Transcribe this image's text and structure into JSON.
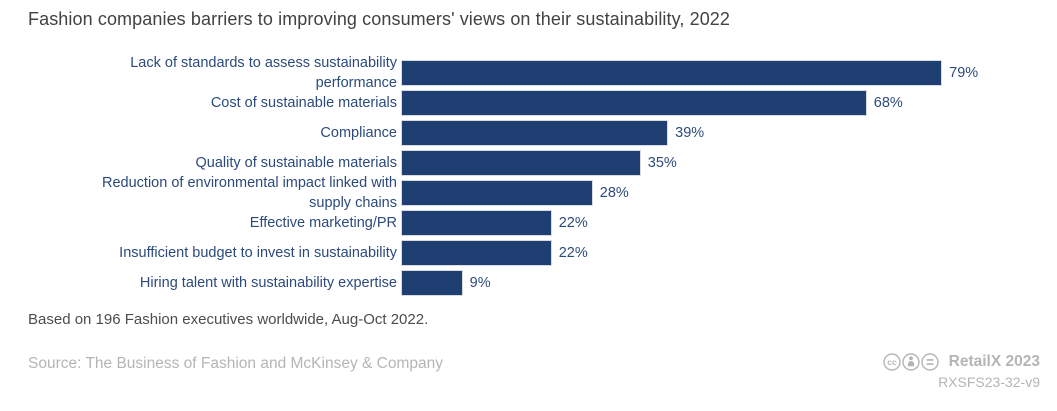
{
  "title": "Fashion companies barriers to improving consumers' views on their sustainability, 2022",
  "chart_data": {
    "type": "bar",
    "orientation": "horizontal",
    "title": "Fashion companies barriers to improving consumers' views on their sustainability, 2022",
    "categories": [
      "Lack of standards to assess sustainability performance",
      "Cost of sustainable materials",
      "Compliance",
      "Quality of sustainable materials",
      "Reduction of environmental impact linked with supply chains",
      "Effective marketing/PR",
      "Insufficient budget to invest in sustainability",
      "Hiring talent with sustainability expertise"
    ],
    "label_lines": [
      [
        "Lack of standards to assess sustainability",
        "performance"
      ],
      [
        "Cost of sustainable materials"
      ],
      [
        "Compliance"
      ],
      [
        "Quality of sustainable materials"
      ],
      [
        "Reduction of environmental impact linked with",
        "supply chains"
      ],
      [
        "Effective marketing/PR"
      ],
      [
        "Insufficient budget to invest in sustainability"
      ],
      [
        "Hiring talent with sustainability expertise"
      ]
    ],
    "values": [
      79,
      68,
      39,
      35,
      28,
      22,
      22,
      9
    ],
    "value_labels": [
      "79%",
      "68%",
      "39%",
      "35%",
      "28%",
      "22%",
      "22%",
      "9%"
    ],
    "unit": "%",
    "xlim": [
      0,
      100
    ],
    "grid": false,
    "legend": false,
    "bar_color": "#1f3f73"
  },
  "note": "Based on 196 Fashion executives worldwide, Aug-Oct 2022.",
  "footer": {
    "source": "Source: The Business of Fashion and McKinsey & Company",
    "brand": "RetailX 2023",
    "reference": "RXSFS23-32-v9",
    "license_icons": [
      "cc-icon",
      "attribution-icon",
      "equals-icon"
    ]
  },
  "colors": {
    "bar": "#1f3f73",
    "category_text": "#2c4a7c",
    "title_text": "#424242",
    "note_text": "#4c4c4c",
    "muted_text": "#b5b5b5",
    "background": "#ffffff"
  }
}
